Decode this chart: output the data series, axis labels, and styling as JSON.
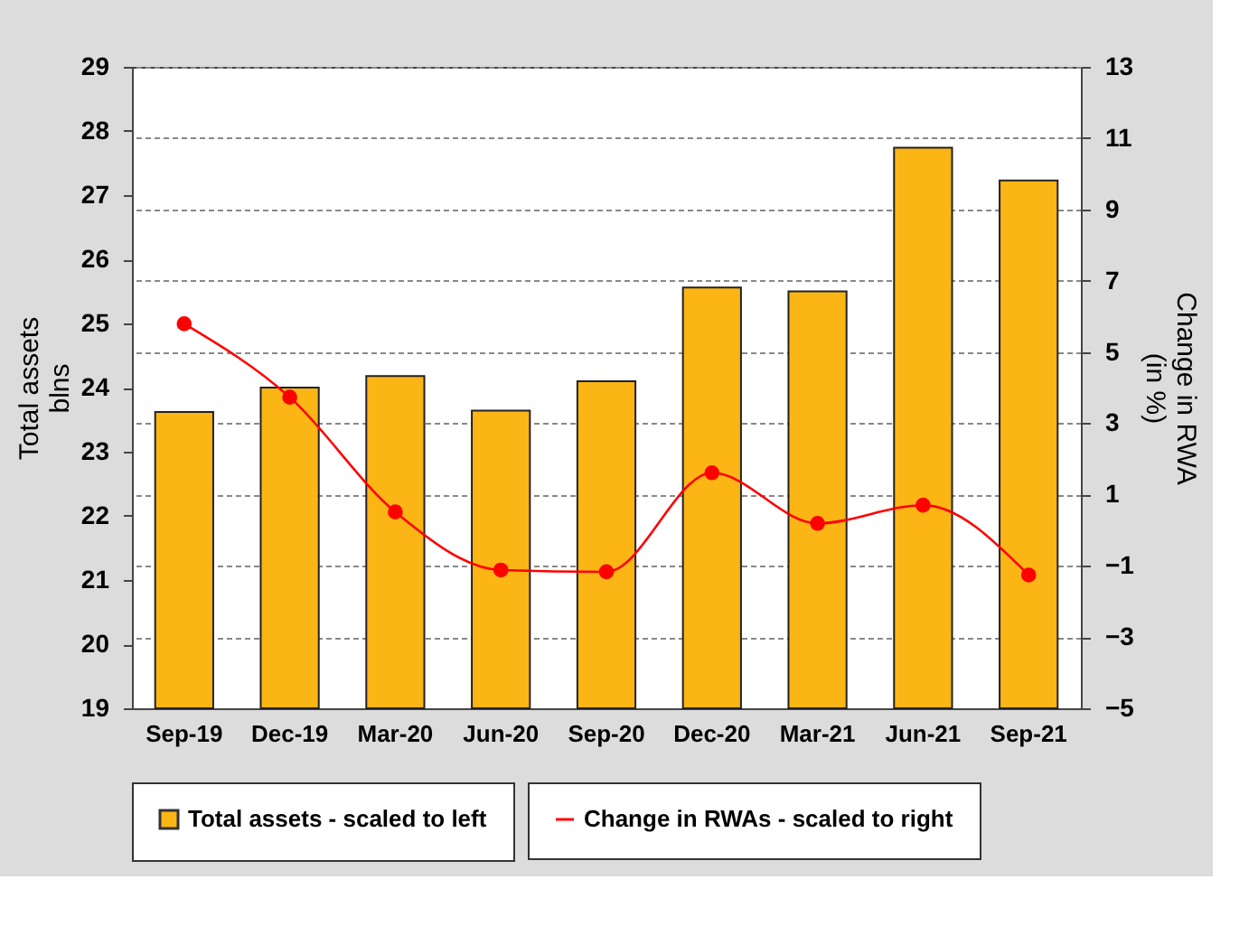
{
  "chart_data": {
    "type": "bar",
    "categories": [
      "Sep-19",
      "Dec-19",
      "Mar-20",
      "Jun-20",
      "Sep-20",
      "Dec-20",
      "Mar-21",
      "Jun-21",
      "Sep-21"
    ],
    "series": [
      {
        "name": "Total assets - scaled to left",
        "color": "#fbb514",
        "values": [
          23.62,
          24.0,
          24.18,
          23.64,
          24.1,
          25.56,
          25.5,
          27.74,
          27.23
        ]
      },
      {
        "name": "Change in RWAs - scaled to right",
        "type": "line",
        "axis": "y2",
        "color": "#ff0000",
        "marker": "circle",
        "line_style": "solid",
        "values": [
          5.79,
          3.73,
          0.51,
          -1.12,
          -1.17,
          1.61,
          0.19,
          0.7,
          -1.26
        ]
      }
    ],
    "ylabel": "Total assets\nblns",
    "y2label": "Change in RWA\n(in %)",
    "ylim": [
      19,
      29
    ],
    "yticks": [
      19,
      20,
      21,
      22,
      23,
      24,
      25,
      26,
      27,
      28,
      29
    ],
    "y2lim": [
      -5,
      13
    ],
    "y2ticks": [
      -5,
      -3,
      -1,
      1,
      3,
      5,
      7,
      9,
      11,
      13
    ],
    "grid": "y2",
    "legend": "bottom"
  }
}
